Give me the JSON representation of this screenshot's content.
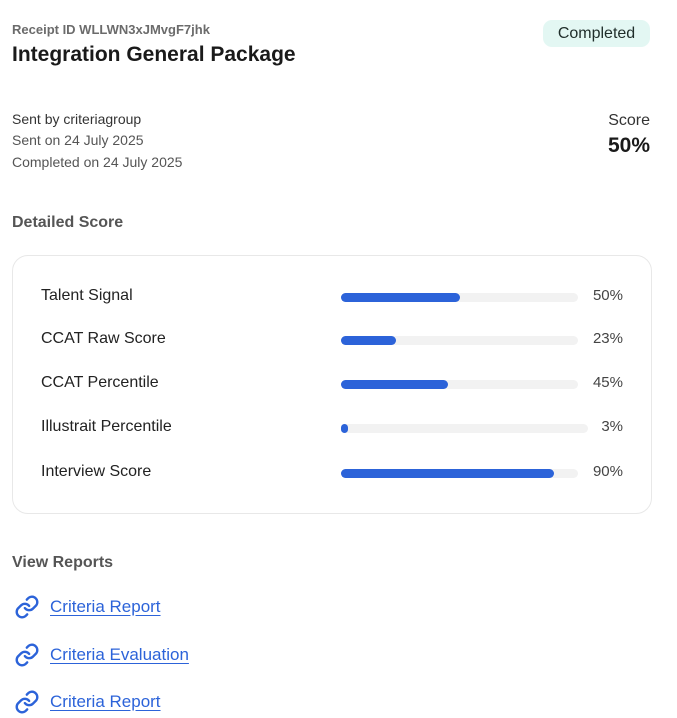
{
  "header": {
    "receipt_id": "Receipt ID WLLWN3xJMvgF7jhk",
    "title": "Integration General Package",
    "status": "Completed"
  },
  "meta": {
    "sent_by": "Sent by criteriagroup",
    "sent_on": "Sent on 24 July 2025",
    "completed_on": "Completed on 24 July 2025"
  },
  "score": {
    "label": "Score",
    "value": "50%"
  },
  "detailed_score": {
    "heading": "Detailed Score",
    "rows": [
      {
        "label": "Talent Signal",
        "percent": 50,
        "percent_text": "50%"
      },
      {
        "label": "CCAT Raw Score",
        "percent": 23,
        "percent_text": "23%"
      },
      {
        "label": "CCAT Percentile",
        "percent": 45,
        "percent_text": "45%"
      },
      {
        "label": "Illustrait Percentile",
        "percent": 3,
        "percent_text": "3%"
      },
      {
        "label": "Interview Score",
        "percent": 90,
        "percent_text": "90%"
      }
    ]
  },
  "reports": {
    "heading": "View Reports",
    "links": [
      {
        "label": "Criteria Report",
        "icon": "link-icon"
      },
      {
        "label": "Criteria Evaluation",
        "icon": "link-icon"
      },
      {
        "label": "Criteria Report",
        "icon": "link-icon"
      }
    ]
  },
  "colors": {
    "accent": "#2c63d9",
    "badge_bg": "#e3f7f3",
    "track": "#f2f2f2"
  }
}
